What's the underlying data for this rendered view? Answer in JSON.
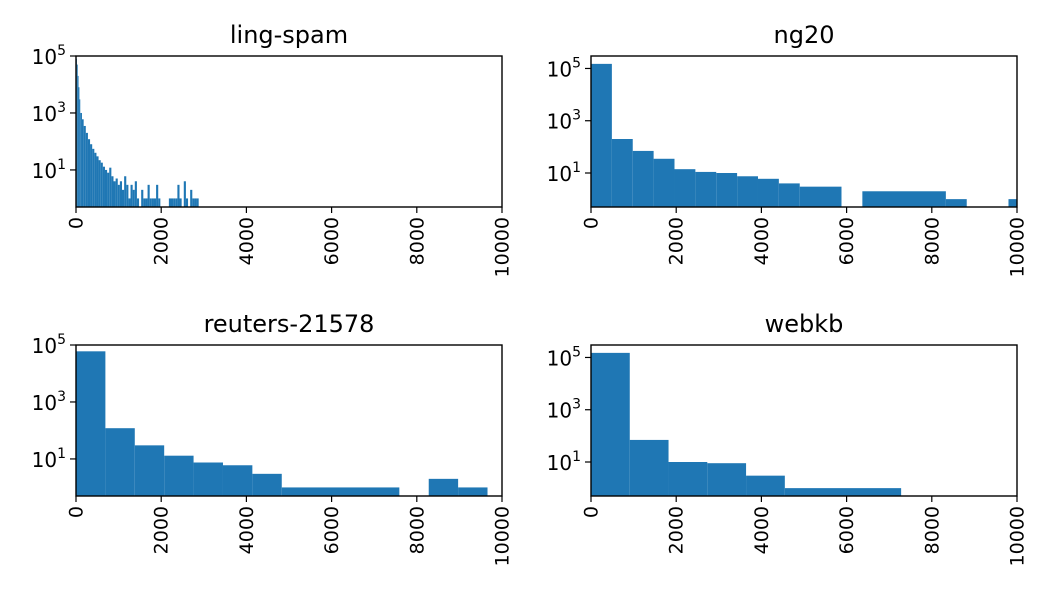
{
  "figure": {
    "background": "#ffffff",
    "bar_color": "#1f77b4"
  },
  "chart_data": [
    {
      "type": "bar",
      "title": "ling-spam",
      "xlabel": "",
      "ylabel": "",
      "y_scale": "log",
      "xlim": [
        0,
        10000
      ],
      "ylim": [
        0.5,
        100000
      ],
      "x_ticks": [
        "0",
        "2000",
        "4000",
        "6000",
        "8000",
        "10000"
      ],
      "y_ticks": [
        {
          "base": "10",
          "exp": "1",
          "value": 10
        },
        {
          "base": "10",
          "exp": "3",
          "value": 1000
        },
        {
          "base": "10",
          "exp": "5",
          "value": 100000
        }
      ],
      "bins": [
        {
          "x0": 0,
          "x1": 20,
          "y": 80000
        },
        {
          "x0": 20,
          "x1": 40,
          "y": 50000
        },
        {
          "x0": 40,
          "x1": 60,
          "y": 20000
        },
        {
          "x0": 60,
          "x1": 80,
          "y": 8000
        },
        {
          "x0": 80,
          "x1": 100,
          "y": 3000
        },
        {
          "x0": 100,
          "x1": 140,
          "y": 1000
        },
        {
          "x0": 140,
          "x1": 180,
          "y": 600
        },
        {
          "x0": 180,
          "x1": 230,
          "y": 350
        },
        {
          "x0": 230,
          "x1": 280,
          "y": 200
        },
        {
          "x0": 280,
          "x1": 330,
          "y": 120
        },
        {
          "x0": 330,
          "x1": 380,
          "y": 80
        },
        {
          "x0": 380,
          "x1": 430,
          "y": 55
        },
        {
          "x0": 430,
          "x1": 480,
          "y": 40
        },
        {
          "x0": 480,
          "x1": 530,
          "y": 30
        },
        {
          "x0": 530,
          "x1": 580,
          "y": 22
        },
        {
          "x0": 580,
          "x1": 630,
          "y": 18
        },
        {
          "x0": 630,
          "x1": 680,
          "y": 13
        },
        {
          "x0": 680,
          "x1": 730,
          "y": 10
        },
        {
          "x0": 730,
          "x1": 780,
          "y": 8
        },
        {
          "x0": 780,
          "x1": 830,
          "y": 12
        },
        {
          "x0": 830,
          "x1": 880,
          "y": 6
        },
        {
          "x0": 880,
          "x1": 930,
          "y": 4
        },
        {
          "x0": 930,
          "x1": 980,
          "y": 5
        },
        {
          "x0": 980,
          "x1": 1030,
          "y": 3
        },
        {
          "x0": 1030,
          "x1": 1080,
          "y": 4
        },
        {
          "x0": 1080,
          "x1": 1130,
          "y": 2
        },
        {
          "x0": 1130,
          "x1": 1180,
          "y": 6
        },
        {
          "x0": 1180,
          "x1": 1230,
          "y": 3
        },
        {
          "x0": 1230,
          "x1": 1280,
          "y": 1
        },
        {
          "x0": 1280,
          "x1": 1330,
          "y": 3
        },
        {
          "x0": 1330,
          "x1": 1380,
          "y": 2
        },
        {
          "x0": 1380,
          "x1": 1430,
          "y": 4
        },
        {
          "x0": 1430,
          "x1": 1480,
          "y": 1
        },
        {
          "x0": 1530,
          "x1": 1580,
          "y": 2
        },
        {
          "x0": 1580,
          "x1": 1630,
          "y": 1
        },
        {
          "x0": 1630,
          "x1": 1680,
          "y": 1
        },
        {
          "x0": 1680,
          "x1": 1730,
          "y": 3
        },
        {
          "x0": 1730,
          "x1": 1780,
          "y": 1
        },
        {
          "x0": 1780,
          "x1": 1830,
          "y": 1
        },
        {
          "x0": 1830,
          "x1": 1880,
          "y": 1
        },
        {
          "x0": 1880,
          "x1": 1930,
          "y": 3
        },
        {
          "x0": 1930,
          "x1": 1980,
          "y": 1
        },
        {
          "x0": 2180,
          "x1": 2230,
          "y": 1
        },
        {
          "x0": 2230,
          "x1": 2280,
          "y": 1
        },
        {
          "x0": 2280,
          "x1": 2330,
          "y": 1
        },
        {
          "x0": 2330,
          "x1": 2380,
          "y": 1
        },
        {
          "x0": 2380,
          "x1": 2430,
          "y": 3
        },
        {
          "x0": 2430,
          "x1": 2480,
          "y": 1
        },
        {
          "x0": 2530,
          "x1": 2580,
          "y": 4
        },
        {
          "x0": 2580,
          "x1": 2630,
          "y": 1
        },
        {
          "x0": 2680,
          "x1": 2730,
          "y": 2
        },
        {
          "x0": 2730,
          "x1": 2780,
          "y": 1
        },
        {
          "x0": 2780,
          "x1": 2830,
          "y": 1
        },
        {
          "x0": 2830,
          "x1": 2880,
          "y": 1
        }
      ]
    },
    {
      "type": "bar",
      "title": "ng20",
      "xlabel": "",
      "ylabel": "",
      "y_scale": "log",
      "xlim": [
        0,
        10000
      ],
      "ylim": [
        0.5,
        300000
      ],
      "x_ticks": [
        "0",
        "2000",
        "4000",
        "6000",
        "8000",
        "10000"
      ],
      "y_ticks": [
        {
          "base": "10",
          "exp": "1",
          "value": 10
        },
        {
          "base": "10",
          "exp": "3",
          "value": 1000
        },
        {
          "base": "10",
          "exp": "5",
          "value": 100000
        }
      ],
      "bins": [
        {
          "x0": 0,
          "x1": 490,
          "y": 150000
        },
        {
          "x0": 490,
          "x1": 980,
          "y": 200
        },
        {
          "x0": 980,
          "x1": 1470,
          "y": 70
        },
        {
          "x0": 1470,
          "x1": 1960,
          "y": 35
        },
        {
          "x0": 1960,
          "x1": 2450,
          "y": 14
        },
        {
          "x0": 2450,
          "x1": 2940,
          "y": 11
        },
        {
          "x0": 2940,
          "x1": 3430,
          "y": 10
        },
        {
          "x0": 3430,
          "x1": 3920,
          "y": 7.5
        },
        {
          "x0": 3920,
          "x1": 4410,
          "y": 6
        },
        {
          "x0": 4410,
          "x1": 4900,
          "y": 4
        },
        {
          "x0": 4900,
          "x1": 5880,
          "y": 3
        },
        {
          "x0": 6370,
          "x1": 8330,
          "y": 2
        },
        {
          "x0": 8330,
          "x1": 8820,
          "y": 1
        },
        {
          "x0": 9800,
          "x1": 10000,
          "y": 1
        }
      ]
    },
    {
      "type": "bar",
      "title": "reuters-21578",
      "xlabel": "",
      "ylabel": "",
      "y_scale": "log",
      "xlim": [
        0,
        10000
      ],
      "ylim": [
        0.5,
        100000
      ],
      "x_ticks": [
        "0",
        "2000",
        "4000",
        "6000",
        "8000",
        "10000"
      ],
      "y_ticks": [
        {
          "base": "10",
          "exp": "1",
          "value": 10
        },
        {
          "base": "10",
          "exp": "3",
          "value": 1000
        },
        {
          "base": "10",
          "exp": "5",
          "value": 100000
        }
      ],
      "bins": [
        {
          "x0": 0,
          "x1": 690,
          "y": 60000
        },
        {
          "x0": 690,
          "x1": 1380,
          "y": 120
        },
        {
          "x0": 1380,
          "x1": 2070,
          "y": 30
        },
        {
          "x0": 2070,
          "x1": 2760,
          "y": 13
        },
        {
          "x0": 2760,
          "x1": 3450,
          "y": 7.5
        },
        {
          "x0": 3450,
          "x1": 4140,
          "y": 6
        },
        {
          "x0": 4140,
          "x1": 4830,
          "y": 3
        },
        {
          "x0": 4830,
          "x1": 7590,
          "y": 1
        },
        {
          "x0": 8280,
          "x1": 8970,
          "y": 2
        },
        {
          "x0": 8970,
          "x1": 9660,
          "y": 1
        }
      ]
    },
    {
      "type": "bar",
      "title": "webkb",
      "xlabel": "",
      "ylabel": "",
      "y_scale": "log",
      "xlim": [
        0,
        10000
      ],
      "ylim": [
        0.5,
        300000
      ],
      "x_ticks": [
        "0",
        "2000",
        "4000",
        "6000",
        "8000",
        "10000"
      ],
      "y_ticks": [
        {
          "base": "10",
          "exp": "1",
          "value": 10
        },
        {
          "base": "10",
          "exp": "3",
          "value": 1000
        },
        {
          "base": "10",
          "exp": "5",
          "value": 100000
        }
      ],
      "bins": [
        {
          "x0": 0,
          "x1": 910,
          "y": 150000
        },
        {
          "x0": 910,
          "x1": 1820,
          "y": 70
        },
        {
          "x0": 1820,
          "x1": 2730,
          "y": 10
        },
        {
          "x0": 2730,
          "x1": 3640,
          "y": 9
        },
        {
          "x0": 3640,
          "x1": 4550,
          "y": 3
        },
        {
          "x0": 4550,
          "x1": 7280,
          "y": 1
        }
      ]
    }
  ]
}
